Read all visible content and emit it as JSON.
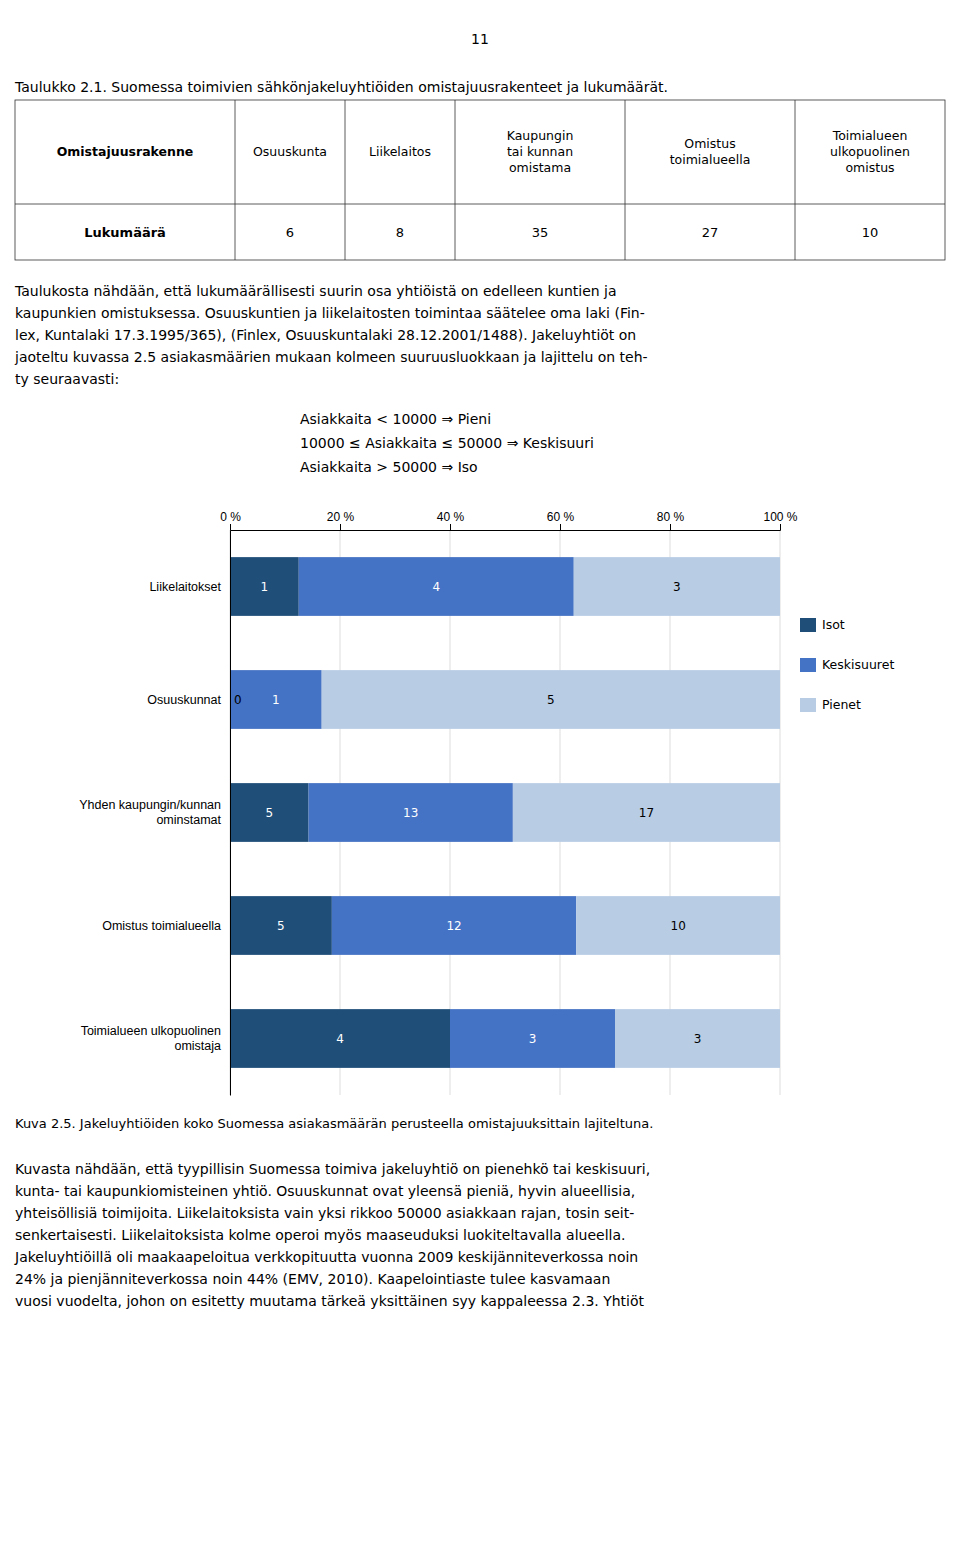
{
  "page_number": "11",
  "table": {
    "title": "Taulukko 2.1. Suomessa toimivien sähkönjakeluyhtiöiden omistajuusrakenteet ja lukumäärät.",
    "columns": [
      "Omistajuusrakenne",
      "Osuuskunta",
      "Liikelaitos",
      "Kaupungin\ntai kunnan\nomistama",
      "Omistus\ntoimialueella",
      "Toimialueen\nulkopuolinen\nomistus"
    ],
    "rows": [
      {
        "label": "Lukumäärä",
        "values": [
          6,
          8,
          35,
          27,
          10
        ]
      }
    ]
  },
  "paragraphs": [
    [
      "Taulukosta nähdään, että lukumäärällisesti suurin osa yhtiöistä on edelleen kuntien ja",
      "kaupunkien omistuksessa. Osuuskuntien ja liikelaitosten toimintaa säätelee oma laki (Fin-",
      "lex, Kuntalaki 17.3.1995/365), (Finlex, Osuuskuntalaki 28.12.2001/1488). Jakeluyhtiöt on",
      "jaoteltu kuvassa 2.5 asiakasmäärien mukaan kolmeen suuruusluokkaan ja lajittelu on teh-",
      "ty seuraavasti:"
    ],
    [
      "Kuvasta nähdään, että tyypillisin Suomessa toimiva jakeluyhtiö on pienehkö tai keskisuuri,",
      "kunta- tai kaupunkiomisteinen yhtiö. Osuuskunnat ovat yleensä pieniä, hyvin alueellisia,",
      "yhteisöllisiä toimijoita. Liikelaitoksista vain yksi rikkoo 50000 asiakkaan rajan, tosin seit-",
      "senkertaisesti. Liikelaitoksista kolme operoi myös maaseuduksi luokiteltavalla alueella.",
      "Jakeluyhtiöillä oli maakaapeloitua verkkopituutta vuonna 2009 keskijänniteverkossa noin",
      "24% ja pienjänniteverkossa noin 44% (EMV, 2010). Kaapelointiaste tulee kasvamaan",
      "vuosi vuodelta, johon on esitetty muutama tärkeä yksittäinen syy kappaleessa 2.3. Yhtiöt"
    ]
  ],
  "bullets": [
    "Asiakkaita < 10000  ⇒  Pieni",
    "10000 ≤ Asiakkaita ≤ 50000  ⇒  Keskisuuri",
    "Asiakkaita > 50000  ⇒  Iso"
  ],
  "chart_data": {
    "type": "bar",
    "orientation": "horizontal",
    "stacked": true,
    "title": "Kuva 2.5. Jakeluyhtiöiden koko Suomessa asiakasmäärän perusteella omistajuuksittain lajiteltuna.",
    "categories": [
      "Liikelaitokset",
      "Osuuskunnat",
      "Yhden kaupungin/kunnan\nominstamat",
      "Omistus toimialueella",
      "Toimialueen ulkopuolinen\nomistaja"
    ],
    "series": [
      {
        "name": "Isot",
        "color": "#1F4E79",
        "values": [
          12.5,
          0,
          14.285714285714286,
          18.51851851851852,
          40
        ],
        "counts": [
          1,
          0,
          5,
          5,
          4
        ]
      },
      {
        "name": "Keskisuuret",
        "color": "#4472C4",
        "values": [
          50,
          16.666666666666668,
          37.142857142857146,
          44.44444444444444,
          30
        ],
        "counts": [
          4,
          1,
          13,
          12,
          3
        ]
      },
      {
        "name": "Pienet",
        "color": "#B8CCE4",
        "values": [
          37.5,
          83.33333333333333,
          48.57142857142857,
          37.03703703703704,
          30
        ],
        "counts": [
          3,
          5,
          17,
          10,
          3
        ]
      }
    ],
    "xlim": [
      0,
      100
    ],
    "xticks": [
      {
        "value": 0,
        "label": "0 %"
      },
      {
        "value": 20,
        "label": "20 %"
      },
      {
        "value": 40,
        "label": "40 %"
      },
      {
        "value": 60,
        "label": "60 %"
      },
      {
        "value": 80,
        "label": "80 %"
      },
      {
        "value": 100,
        "label": "100 %"
      }
    ],
    "grid": true,
    "legend": "right"
  }
}
